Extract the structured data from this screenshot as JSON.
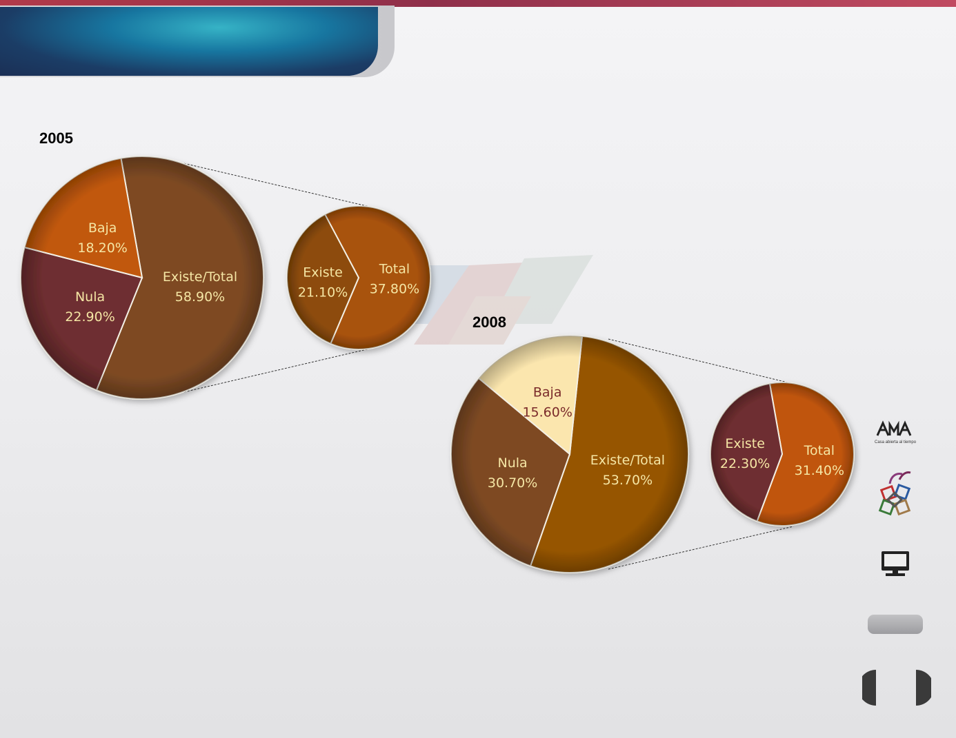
{
  "chart_data": [
    {
      "type": "pie",
      "title": "2005",
      "slices": [
        {
          "label": "Existe/Total",
          "value": 58.9,
          "display": "58.90%",
          "color": "#7e4a24",
          "text_color": "#f5e6a5"
        },
        {
          "label": "Nula",
          "value": 22.9,
          "display": "22.90%",
          "color": "#6e2e30",
          "text_color": "#f5e6a5"
        },
        {
          "label": "Baja",
          "value": 18.2,
          "display": "18.20%",
          "color": "#c15808",
          "text_color": "#f5e6a5"
        }
      ],
      "breakdown": {
        "of": "Existe/Total",
        "slices": [
          {
            "label": "Total",
            "value": 37.8,
            "display": "37.80%",
            "color": "#a85208",
            "text_color": "#f5e6a5"
          },
          {
            "label": "Existe",
            "value": 21.1,
            "display": "21.10%",
            "color": "#8d4c08",
            "text_color": "#f5e6a5"
          }
        ]
      }
    },
    {
      "type": "pie",
      "title": "2008",
      "slices": [
        {
          "label": "Existe/Total",
          "value": 53.7,
          "display": "53.70%",
          "color": "#965503",
          "text_color": "#f5e6a5"
        },
        {
          "label": "Nula",
          "value": 30.7,
          "display": "30.70%",
          "color": "#7e4a24",
          "text_color": "#f5e6a5"
        },
        {
          "label": "Baja",
          "value": 15.6,
          "display": "15.60%",
          "color": "#fbe6ae",
          "text_color": "#7a2a2a"
        }
      ],
      "breakdown": {
        "of": "Existe/Total",
        "slices": [
          {
            "label": "Total",
            "value": 31.4,
            "display": "31.40%",
            "color": "#c05508",
            "text_color": "#f5e6a5"
          },
          {
            "label": "Existe",
            "value": 22.3,
            "display": "22.30%",
            "color": "#6e2e30",
            "text_color": "#f5e6a5"
          }
        ]
      }
    }
  ],
  "logo": {
    "tagline": "Casa abierta al tiempo"
  },
  "icons": {
    "logo": "uam-logo-icon",
    "cubes": "colored-cubes-icon",
    "monitor": "monitor-icon",
    "prev": "previous-arrow-icon",
    "next": "next-arrow-icon"
  },
  "theme": {
    "header": "#1b3d66",
    "accent": "#b23a4a"
  }
}
